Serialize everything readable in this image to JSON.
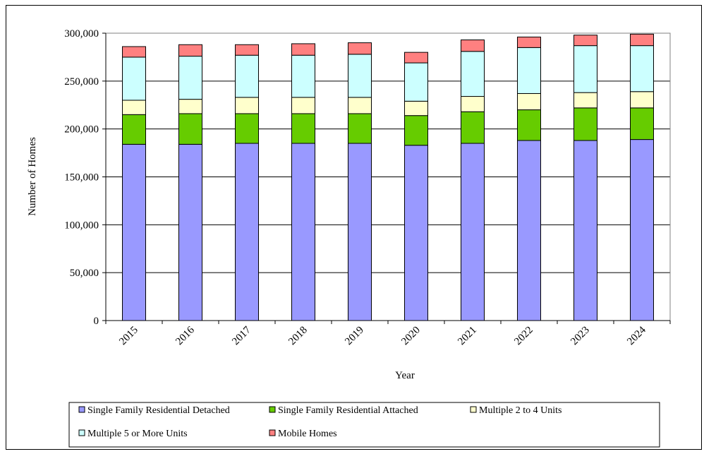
{
  "chart_data": {
    "type": "bar",
    "stacked": true,
    "categories": [
      "2015",
      "2016",
      "2017",
      "2018",
      "2019",
      "2020",
      "2021",
      "2022",
      "2023",
      "2024"
    ],
    "series": [
      {
        "name": "Single Family Residential Detached",
        "color": "#9999ff",
        "values": [
          184000,
          184000,
          185000,
          185000,
          185000,
          183000,
          185000,
          188000,
          188000,
          189000
        ]
      },
      {
        "name": "Single Family Residential Attached",
        "color": "#66cc00",
        "values": [
          31000,
          32000,
          31000,
          31000,
          31000,
          31000,
          33000,
          32000,
          34000,
          33000
        ]
      },
      {
        "name": "Multiple 2 to 4 Units",
        "color": "#ffffcc",
        "values": [
          15000,
          15000,
          17000,
          17000,
          17000,
          15000,
          16000,
          17000,
          16000,
          17000
        ]
      },
      {
        "name": "Multiple 5 or More Units",
        "color": "#ccffff",
        "values": [
          45000,
          45000,
          44000,
          44000,
          45000,
          40000,
          47000,
          48000,
          49000,
          48000
        ]
      },
      {
        "name": "Mobile Homes",
        "color": "#ff8080",
        "values": [
          11000,
          12000,
          11000,
          12000,
          12000,
          11000,
          12000,
          11000,
          11000,
          12000
        ]
      }
    ],
    "xlabel": "Year",
    "ylabel": "Number of Homes",
    "ylim": [
      0,
      300000
    ],
    "yticks": [
      "0",
      "50,000",
      "100,000",
      "150,000",
      "200,000",
      "250,000",
      "300,000"
    ],
    "grid": true,
    "legend": "bottom"
  }
}
